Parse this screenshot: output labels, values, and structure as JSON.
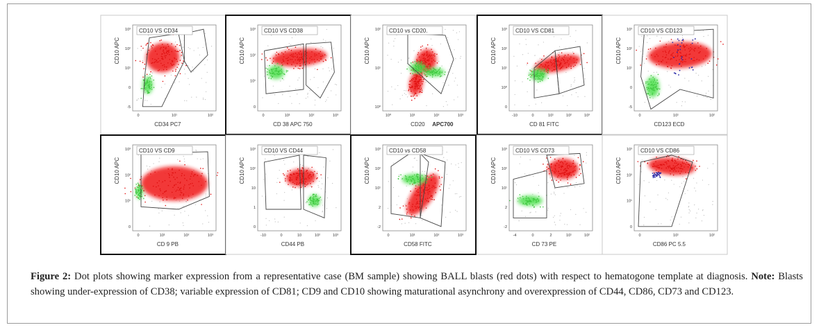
{
  "figure": {
    "panels": [
      {
        "title": "CD10 VS CD34",
        "x_label": "CD34 PC7",
        "y_label": "CD10 APC",
        "yticks": [
          "10³",
          "10²",
          "10¹",
          "0",
          "-5"
        ],
        "xticks": [
          "0",
          "10¹",
          "10²"
        ]
      },
      {
        "title": "CD10 VS CD38",
        "x_label": "CD 38 APC 750",
        "y_label": "CD10 APC",
        "yticks": [
          "10³",
          "10²",
          "10¹",
          "0"
        ],
        "xticks": [
          "0",
          "10¹",
          "10²",
          "10³"
        ]
      },
      {
        "title": "CD10 vs CD20.",
        "x_label": "CD20",
        "x_label_extra": "APC700",
        "y_label": "CD10 APC",
        "yticks": [
          "10²",
          "10¹",
          "10⁰"
        ],
        "xticks": [
          "10⁰",
          "10¹",
          "10²",
          "10³"
        ]
      },
      {
        "title": "CD10 VS CD81",
        "x_label": "CD 81 FITC",
        "y_label": "CD10 APC",
        "yticks": [
          "10³",
          "10²",
          "10¹",
          "10⁰",
          "0"
        ],
        "xticks": [
          "-10",
          "0",
          "10¹",
          "10²",
          "10³"
        ]
      },
      {
        "title": "CD10 VS CD123",
        "x_label": "CD123 ECD",
        "y_label": "CD10 APC",
        "yticks": [
          "10³",
          "10²",
          "10¹",
          "0",
          "-5"
        ],
        "xticks": [
          "0",
          "10¹",
          "10²"
        ]
      },
      {
        "title": "CD10 VS CD9",
        "x_label": "CD 9 PB",
        "y_label": "CD10 APC",
        "yticks": [
          "10³",
          "10²",
          "10¹",
          "0"
        ],
        "xticks": [
          "0",
          "10¹",
          "10²",
          "10³"
        ]
      },
      {
        "title": "CD10 VS CD44",
        "x_label": "CD44 PB",
        "y_label": "CD10 APC",
        "yticks": [
          "10³",
          "10²",
          "10",
          "1",
          "0"
        ],
        "xticks": [
          "-10",
          "0",
          "10",
          "10²",
          "10³"
        ]
      },
      {
        "title": "CD10 vs CD58",
        "x_label": "CD58 FITC",
        "y_label": "CD10 APC",
        "yticks": [
          "10³",
          "10²",
          "10¹",
          "2",
          "-2"
        ],
        "xticks": [
          "0",
          "10¹",
          "10²",
          "10³"
        ]
      },
      {
        "title": "CD10 VS CD73",
        "x_label": "CD 73 PE",
        "y_label": "CD10 APC",
        "yticks": [
          "10³",
          "10²",
          "10¹",
          "2",
          "-2"
        ],
        "xticks": [
          "-4",
          "0",
          "2",
          "10¹",
          "10²"
        ]
      },
      {
        "title": "CD10 VS CD86",
        "x_label": "CD86 PC 5.5",
        "y_label": "CD10 APC",
        "yticks": [
          "10³",
          "10²",
          "10¹",
          "0"
        ],
        "xticks": [
          "0",
          "10¹",
          "10²"
        ]
      }
    ],
    "caption": {
      "label": "Figure 2:",
      "text": "Dot plots showing marker expression from a representative case (BM sample) showing BALL blasts (red dots) with respect to hematogone template at diagnosis.",
      "note_label": "Note:",
      "note_text": "Blasts showing under-expression of CD38; variable expression of CD81; CD9 and CD10 showing maturational asynchrony and overexpression of CD44, CD86, CD73 and CD123."
    }
  }
}
